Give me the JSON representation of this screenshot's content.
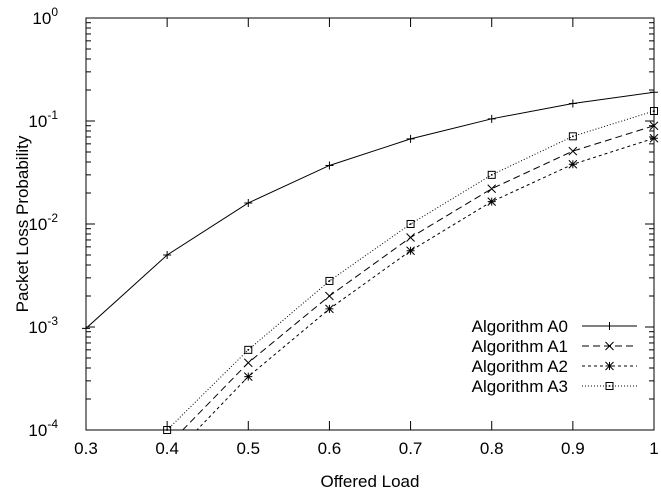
{
  "chart_data": {
    "type": "line",
    "xlabel": "Offered Load",
    "ylabel": "Packet Loss Probability",
    "xlim": [
      0.3,
      1.0
    ],
    "ylim": [
      0.0001,
      1
    ],
    "yscale": "log",
    "grid": false,
    "legend_position": "bottom-right",
    "x_ticks": [
      "0.3",
      "0.4",
      "0.5",
      "0.6",
      "0.7",
      "0.8",
      "0.9",
      "1"
    ],
    "y_ticks": [
      {
        "base": "10",
        "exp": "-4"
      },
      {
        "base": "10",
        "exp": "-3"
      },
      {
        "base": "10",
        "exp": "-2"
      },
      {
        "base": "10",
        "exp": "-1"
      },
      {
        "base": "10",
        "exp": "0"
      }
    ],
    "series": [
      {
        "name": "Algorithm A0",
        "dash": "none",
        "marker": "plus",
        "x": [
          0.3,
          0.4,
          0.5,
          0.6,
          0.7,
          0.8,
          0.9,
          1.0
        ],
        "y": [
          0.00097,
          0.005,
          0.016,
          0.037,
          0.067,
          0.105,
          0.148,
          0.19
        ]
      },
      {
        "name": "Algorithm A1",
        "dash": "7,4",
        "marker": "x",
        "x": [
          0.4,
          0.5,
          0.6,
          0.7,
          0.8,
          0.9,
          1.0
        ],
        "y": [
          7e-05,
          0.00045,
          0.002,
          0.0074,
          0.022,
          0.051,
          0.09
        ]
      },
      {
        "name": "Algorithm A2",
        "dash": "3,3",
        "marker": "star",
        "x": [
          0.4,
          0.5,
          0.6,
          0.7,
          0.8,
          0.9,
          1.0
        ],
        "y": [
          5e-05,
          0.00033,
          0.0015,
          0.0055,
          0.0165,
          0.038,
          0.068
        ]
      },
      {
        "name": "Algorithm A3",
        "dash": "1,2",
        "marker": "square",
        "x": [
          0.4,
          0.5,
          0.6,
          0.7,
          0.8,
          0.9,
          1.0
        ],
        "y": [
          0.0001,
          0.0006,
          0.0028,
          0.01,
          0.03,
          0.071,
          0.125
        ]
      }
    ]
  }
}
